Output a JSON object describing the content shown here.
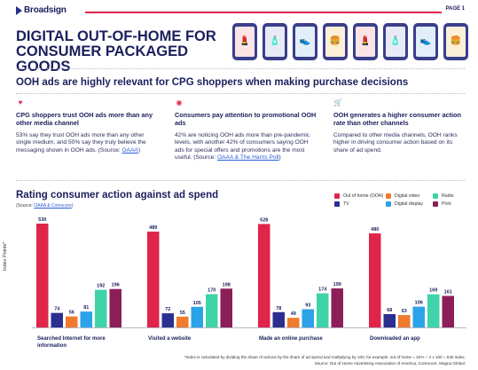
{
  "header": {
    "logo_text": "Broadsign",
    "page_label": "PAGE 1",
    "title_line1": "DIGITAL OUT-OF-HOME FOR",
    "title_line2": "CONSUMER PACKAGED GOODS"
  },
  "phones": [
    {
      "icon": "lipstick-icon",
      "glyph": "💄",
      "bg": "#fbe4e6"
    },
    {
      "icon": "detergent-icon",
      "glyph": "🧴",
      "bg": "#e8ebf5"
    },
    {
      "icon": "sneaker-icon",
      "glyph": "👟",
      "bg": "#e3eefb"
    },
    {
      "icon": "burger-icon",
      "glyph": "🍔",
      "bg": "#fdf0d9"
    },
    {
      "icon": "lipstick-icon",
      "glyph": "💄",
      "bg": "#fbe4e6"
    },
    {
      "icon": "detergent-icon",
      "glyph": "🧴",
      "bg": "#e8ebf5"
    },
    {
      "icon": "sneaker-icon",
      "glyph": "👟",
      "bg": "#e3eefb"
    },
    {
      "icon": "burger-icon",
      "glyph": "🍔",
      "bg": "#fdf0d9"
    }
  ],
  "subtitle": "OOH ads are highly relevant for CPG shoppers when making purchase decisions",
  "columns": [
    {
      "icon": "shield-heart-icon",
      "heading": "CPG shoppers trust OOH ads more than any other media channel",
      "body": "53% say they trust OOH ads more than any other single medium, and 50% say they truly believe the messaging shown in OOH ads. (Source: ",
      "source": "OAAA",
      "close": ")"
    },
    {
      "icon": "eye-icon",
      "heading": "Consumers pay attention to promotional OOH ads",
      "body": "42% are noticing OOH ads more than pre-pandemic levels, with another 42% of consumers saying OOH ads for special offers and promotions are the most useful. (Source: ",
      "source": "OAAA & The Harris Poll",
      "close": ")"
    },
    {
      "icon": "cart-icon",
      "heading": "OOH generates a higher consumer action rate than other channels",
      "body": "Compared to other media channels, OOH ranks higher in driving consumer action based on its share of ad spend.",
      "source": "",
      "close": ""
    }
  ],
  "chart_section": {
    "title": "Rating consumer action against ad spend",
    "source_prefix": "(Source: ",
    "source_link": "OAAA & Comscore",
    "source_suffix": ")",
    "y_axis_label": "Index Points*"
  },
  "chart_data": {
    "type": "bar",
    "categories": [
      "Searched Internet for more information",
      "Visited a website",
      "Made an online purchase",
      "Downloaded an app"
    ],
    "series": [
      {
        "name": "Out of home (OOH)",
        "color": "#e0244a",
        "values": [
          530,
          489,
          528,
          480
        ]
      },
      {
        "name": "TV",
        "color": "#2b2f8f",
        "values": [
          74,
          72,
          78,
          68
        ]
      },
      {
        "name": "Digital video",
        "color": "#f07a2e",
        "values": [
          56,
          55,
          49,
          63
        ]
      },
      {
        "name": "Digital display",
        "color": "#2aa3e8",
        "values": [
          81,
          105,
          93,
          106
        ]
      },
      {
        "name": "Radio",
        "color": "#3fd3a8",
        "values": [
          192,
          170,
          174,
          169
        ]
      },
      {
        "name": "Print",
        "color": "#8b1f58",
        "values": [
          196,
          198,
          199,
          161
        ]
      }
    ],
    "legend_position": "top-right",
    "ylim": [
      0,
      530
    ]
  },
  "footnotes": {
    "line1": "*Index is calculated by dividing the share of actions by the share of ad spend and multiplying by 100, for example: out of home = 22% ÷ 4 x 100 = 530 index.",
    "line2": "Source: Out of Home Advertising Association of America, Comscore, Magna Global."
  }
}
